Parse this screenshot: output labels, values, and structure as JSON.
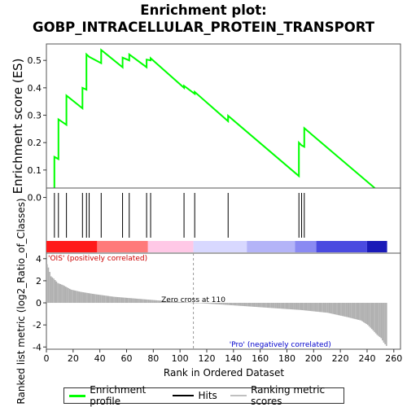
{
  "title": "Enrichment plot:\nGOBP_INTRACELLULAR_PROTEIN_TRANSPORT",
  "chart_data": [
    {
      "type": "line",
      "ylabel": "Enrichment score (ES)",
      "xlim": [
        0,
        265
      ],
      "ylim": [
        -0.04,
        0.56
      ],
      "yticks": [
        0.0,
        0.1,
        0.2,
        0.3,
        0.4,
        0.5
      ],
      "grid": false,
      "series": [
        {
          "name": "Enrichment profile",
          "color": "#00ff00",
          "x": [
            0,
            6,
            6,
            9,
            9,
            15,
            15,
            27,
            27,
            30,
            30,
            32,
            32,
            41,
            41,
            57,
            57,
            62,
            62,
            75,
            75,
            78,
            78,
            103,
            103,
            111,
            111,
            136,
            136,
            189,
            189,
            191,
            191,
            193,
            193,
            254
          ],
          "y": [
            0.0,
            -0.025,
            0.148,
            0.14,
            0.285,
            0.265,
            0.372,
            0.325,
            0.4,
            0.393,
            0.522,
            0.513,
            0.513,
            0.49,
            0.538,
            0.475,
            0.51,
            0.5,
            0.522,
            0.475,
            0.503,
            0.5,
            0.508,
            0.4,
            0.407,
            0.378,
            0.385,
            0.278,
            0.298,
            0.078,
            0.2,
            0.19,
            0.19,
            0.185,
            0.253,
            0.0
          ]
        }
      ]
    },
    {
      "type": "hits",
      "legend": "Hits",
      "hit_ranks": [
        6,
        9,
        15,
        27,
        30,
        32,
        41,
        57,
        62,
        75,
        78,
        103,
        111,
        136,
        189,
        191,
        193
      ]
    },
    {
      "type": "bar",
      "ylabel": "Ranked list metric (log2_Ratio_of_Classes)",
      "xlabel": "Rank in Ordered Dataset",
      "legend": "Ranking metric scores",
      "xlim": [
        0,
        265
      ],
      "ylim": [
        -4.2,
        4.5
      ],
      "xticks": [
        0,
        20,
        40,
        60,
        80,
        100,
        120,
        140,
        160,
        180,
        200,
        220,
        240,
        260
      ],
      "yticks": [
        -4,
        -2,
        0,
        2,
        4
      ],
      "n": 255,
      "x_points": [
        0,
        1,
        3,
        5,
        8,
        12,
        18,
        25,
        35,
        50,
        70,
        90,
        105,
        110,
        130,
        160,
        190,
        210,
        225,
        235,
        240,
        244,
        247,
        250,
        252,
        254
      ],
      "y_points": [
        3.5,
        3.2,
        2.4,
        2.2,
        1.8,
        1.6,
        1.2,
        1.0,
        0.8,
        0.55,
        0.35,
        0.15,
        0.05,
        0.0,
        -0.15,
        -0.4,
        -0.65,
        -0.9,
        -1.3,
        -1.6,
        -2.0,
        -2.5,
        -2.9,
        -3.2,
        -3.6,
        -3.9
      ],
      "zero_cross_rank": 110,
      "zero_cross_label": "Zero cross at 110",
      "pos_label": "'OIS' (positively correlated)",
      "neg_label": "'Pro' (negatively correlated)",
      "pos_color": "#ff0000",
      "neg_color": "#0000ff"
    }
  ],
  "legend": {
    "items": [
      {
        "label": "Enrichment profile",
        "color": "#00ff00"
      },
      {
        "label": "Hits",
        "color": "#000000"
      },
      {
        "label": "Ranking metric scores",
        "color": "#c0c0c0"
      }
    ]
  }
}
